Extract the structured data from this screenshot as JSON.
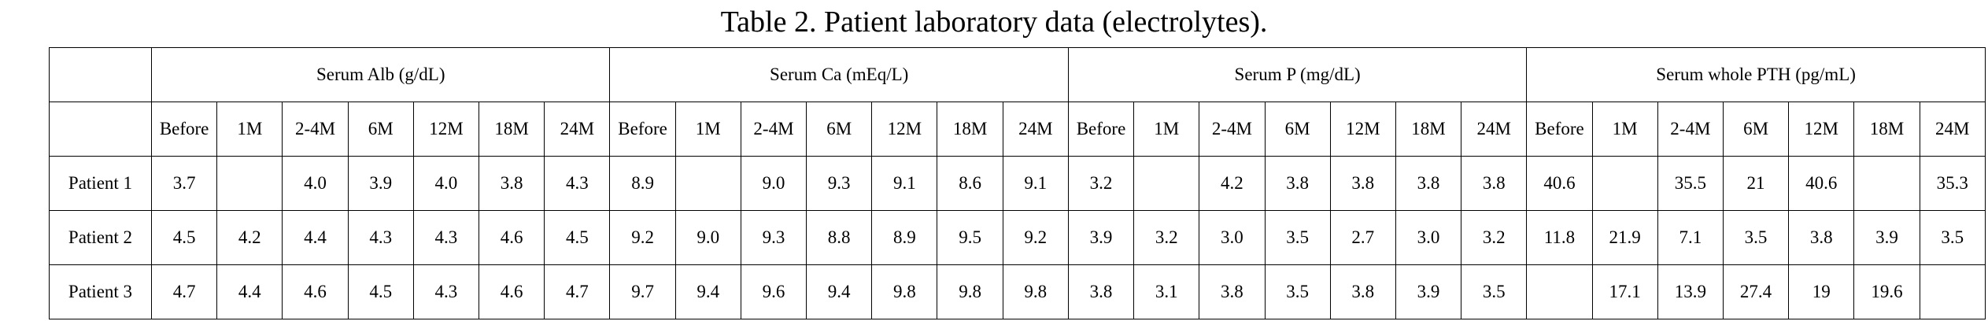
{
  "title": "Table 2.  Patient laboratory data (electrolytes).",
  "table": {
    "groups": [
      {
        "label": "Serum Alb (g/dL)",
        "columns": [
          "Before",
          "1M",
          "2-4M",
          "6M",
          "12M",
          "18M",
          "24M"
        ]
      },
      {
        "label": "Serum Ca (mEq/L)",
        "columns": [
          "Before",
          "1M",
          "2-4M",
          "6M",
          "12M",
          "18M",
          "24M"
        ]
      },
      {
        "label": "Serum P (mg/dL)",
        "columns": [
          "Before",
          "1M",
          "2-4M",
          "6M",
          "12M",
          "18M",
          "24M"
        ]
      },
      {
        "label": "Serum whole PTH (pg/mL)",
        "columns": [
          "Before",
          "1M",
          "2-4M",
          "6M",
          "12M",
          "18M",
          "24M"
        ]
      }
    ],
    "rows": [
      {
        "label": "Patient 1",
        "cells": [
          "3.7",
          null,
          "4.0",
          "3.9",
          "4.0",
          "3.8",
          "4.3",
          "8.9",
          null,
          "9.0",
          "9.3",
          "9.1",
          "8.6",
          "9.1",
          "3.2",
          null,
          "4.2",
          "3.8",
          "3.8",
          "3.8",
          "3.8",
          "40.6",
          null,
          "35.5",
          "21",
          "40.6",
          null,
          "35.3"
        ]
      },
      {
        "label": "Patient 2",
        "cells": [
          "4.5",
          "4.2",
          "4.4",
          "4.3",
          "4.3",
          "4.6",
          "4.5",
          "9.2",
          "9.0",
          "9.3",
          "8.8",
          "8.9",
          "9.5",
          "9.2",
          "3.9",
          "3.2",
          "3.0",
          "3.5",
          "2.7",
          "3.0",
          "3.2",
          "11.8",
          "21.9",
          "7.1",
          "3.5",
          "3.8",
          "3.9",
          "3.5"
        ]
      },
      {
        "label": "Patient 3",
        "cells": [
          "4.7",
          "4.4",
          "4.6",
          "4.5",
          "4.3",
          "4.6",
          "4.7",
          "9.7",
          "9.4",
          "9.6",
          "9.4",
          "9.8",
          "9.8",
          "9.8",
          "3.8",
          "3.1",
          "3.8",
          "3.5",
          "3.8",
          "3.9",
          "3.5",
          null,
          "17.1",
          "13.9",
          "27.4",
          "19",
          "19.6",
          null
        ]
      }
    ]
  }
}
